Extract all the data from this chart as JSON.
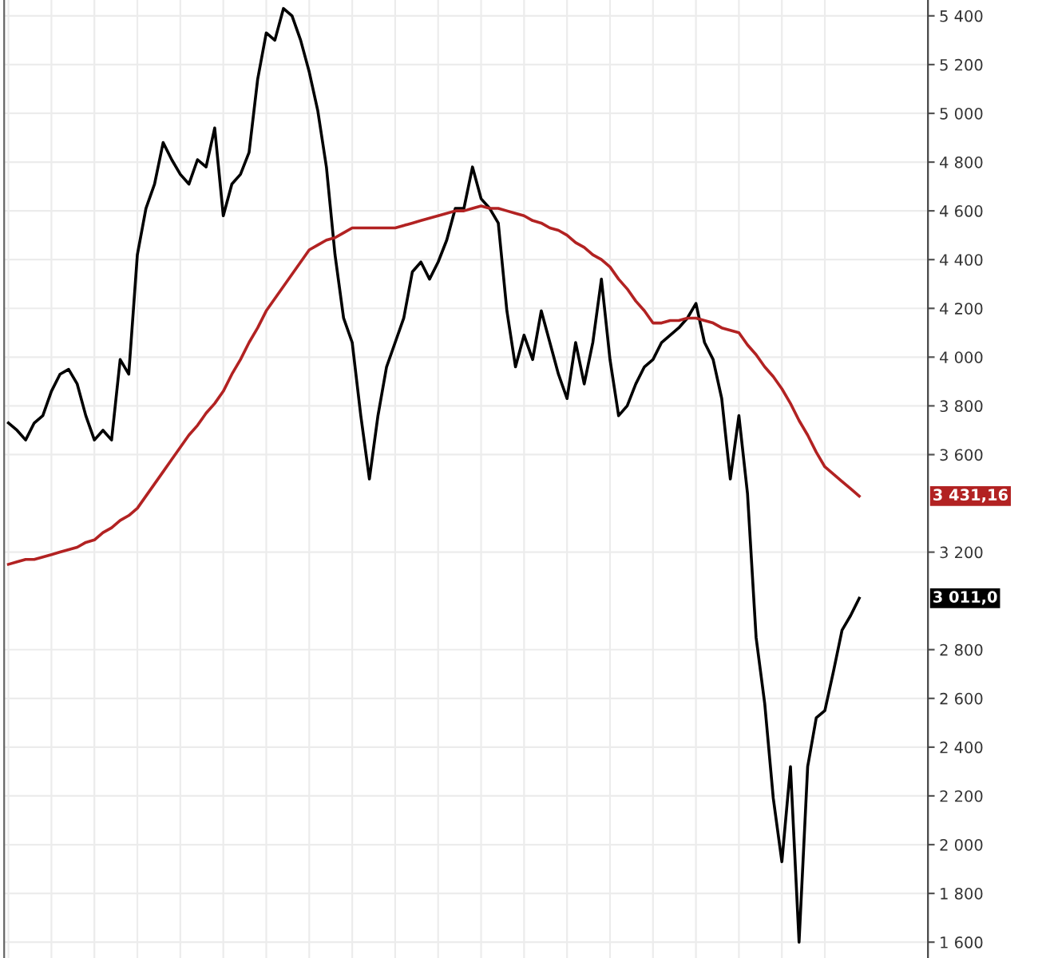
{
  "chart_data": {
    "type": "line",
    "categories": [
      null,
      null,
      null,
      null,
      null,
      null,
      null,
      null,
      null,
      null,
      null,
      null,
      null,
      null,
      null,
      null,
      null,
      null,
      null,
      null,
      null,
      null,
      null,
      null,
      null,
      null,
      null,
      null,
      null,
      null,
      null,
      null,
      null,
      null,
      null,
      null,
      null,
      null,
      null,
      null,
      null,
      null,
      null,
      null,
      null,
      null,
      null,
      null,
      null,
      null,
      null,
      null,
      null,
      null,
      null,
      null,
      null,
      null,
      null,
      null,
      null,
      null,
      null,
      null,
      null,
      null,
      null,
      null,
      null,
      null,
      null,
      null,
      null,
      null,
      null,
      null,
      null,
      null,
      null,
      null,
      null,
      null,
      null,
      null,
      null,
      null,
      null,
      null,
      null,
      null,
      null,
      null,
      null,
      null,
      null,
      null,
      null,
      null,
      null,
      null
    ],
    "series": [
      {
        "color": "#000000",
        "values": [
          3730,
          3700,
          3660,
          3730,
          3760,
          3860,
          3930,
          3950,
          3890,
          3760,
          3660,
          3700,
          3660,
          3990,
          3930,
          4420,
          4610,
          4710,
          4880,
          4810,
          4750,
          4710,
          4810,
          4780,
          4940,
          4580,
          4710,
          4750,
          4840,
          5140,
          5330,
          5300,
          5430,
          5400,
          5300,
          5170,
          5010,
          4780,
          4420,
          4160,
          4060,
          3760,
          3500,
          3760,
          3960,
          4060,
          4160,
          4350,
          4390,
          4320,
          4390,
          4480,
          4610,
          4610,
          4780,
          4650,
          4610,
          4550,
          4190,
          3960,
          4090,
          3990,
          4190,
          4060,
          3930,
          3830,
          4060,
          3890,
          4060,
          4320,
          3990,
          3760,
          3800,
          3890,
          3960,
          3990,
          4060,
          4090,
          4120,
          4160,
          4220,
          4060,
          3990,
          3830,
          3500,
          3760,
          3440,
          2850,
          2580,
          2190,
          1930,
          2320,
          1600,
          2320,
          2520,
          2550,
          2710,
          2880,
          2940,
          3011
        ]
      },
      {
        "color": "#b22222",
        "values": [
          3150,
          3160,
          3170,
          3170,
          3180,
          3190,
          3200,
          3210,
          3220,
          3240,
          3250,
          3280,
          3300,
          3330,
          3350,
          3380,
          3430,
          3480,
          3530,
          3580,
          3630,
          3680,
          3720,
          3770,
          3810,
          3860,
          3930,
          3990,
          4060,
          4120,
          4190,
          4240,
          4290,
          4340,
          4390,
          4440,
          4460,
          4480,
          4490,
          4510,
          4530,
          4530,
          4530,
          4530,
          4530,
          4530,
          4540,
          4550,
          4560,
          4570,
          4580,
          4590,
          4600,
          4600,
          4610,
          4620,
          4610,
          4610,
          4600,
          4590,
          4580,
          4560,
          4550,
          4530,
          4520,
          4500,
          4470,
          4450,
          4420,
          4400,
          4370,
          4320,
          4280,
          4230,
          4190,
          4140,
          4140,
          4150,
          4150,
          4160,
          4160,
          4150,
          4140,
          4120,
          4110,
          4100,
          4050,
          4010,
          3960,
          3920,
          3870,
          3810,
          3740,
          3680,
          3610,
          3550,
          3520,
          3490,
          3460,
          3430
        ]
      }
    ],
    "ylim": [
      1535,
      5465
    ],
    "yticks": [
      {
        "value": 1600,
        "label": "1 600"
      },
      {
        "value": 1800,
        "label": "1 800"
      },
      {
        "value": 2000,
        "label": "2 000"
      },
      {
        "value": 2200,
        "label": "2 200"
      },
      {
        "value": 2400,
        "label": "2 400"
      },
      {
        "value": 2600,
        "label": "2 600"
      },
      {
        "value": 2800,
        "label": "2 800"
      },
      {
        "value": 3200,
        "label": "3 200"
      },
      {
        "value": 3600,
        "label": "3 600"
      },
      {
        "value": 3800,
        "label": "3 800"
      },
      {
        "value": 4000,
        "label": "4 000"
      },
      {
        "value": 4200,
        "label": "4 200"
      },
      {
        "value": 4400,
        "label": "4 400"
      },
      {
        "value": 4600,
        "label": "4 600"
      },
      {
        "value": 4800,
        "label": "4 800"
      },
      {
        "value": 5000,
        "label": "5 000"
      },
      {
        "value": 5200,
        "label": "5 200"
      },
      {
        "value": 5400,
        "label": "5 400"
      }
    ],
    "tick_labels": "y",
    "grid": true,
    "annotations": [
      "3 431,16",
      "3 011,0"
    ]
  }
}
